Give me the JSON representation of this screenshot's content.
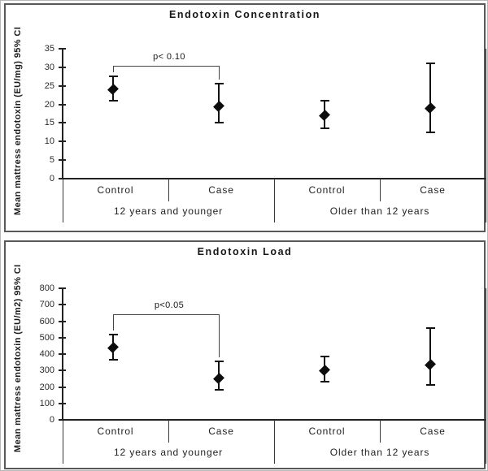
{
  "figure": {
    "description": "Two stacked mean/95% CI charts comparing mattress endotoxin between cases and controls by age group"
  },
  "chart_data": [
    {
      "type": "scatter",
      "subtype": "mean-ci-error-bars",
      "title": "Endotoxin Concentration",
      "ylabel": "Mean mattress endotoxin (EU/mg) 95%  CI",
      "xlabel": "",
      "ylim": [
        0,
        35
      ],
      "yticks": [
        0,
        5,
        10,
        15,
        20,
        25,
        30,
        35
      ],
      "grid": false,
      "legend": "none",
      "groups": [
        "12 years and younger",
        "Older than 12 years"
      ],
      "categories": [
        "Control",
        "Case",
        "Control",
        "Case"
      ],
      "points": [
        {
          "group": "12 years and younger",
          "category": "Control",
          "mean": 24,
          "ci_low": 21,
          "ci_high": 27.5
        },
        {
          "group": "12 years and younger",
          "category": "Case",
          "mean": 19.5,
          "ci_low": 15,
          "ci_high": 25.5
        },
        {
          "group": "Older than 12 years",
          "category": "Control",
          "mean": 17,
          "ci_low": 13.5,
          "ci_high": 21
        },
        {
          "group": "Older than 12 years",
          "category": "Case",
          "mean": 19,
          "ci_low": 12.5,
          "ci_high": 31
        }
      ],
      "annotation": {
        "text": "p< 0.10",
        "from": 0,
        "to": 1,
        "bar_value": 30.5
      }
    },
    {
      "type": "scatter",
      "subtype": "mean-ci-error-bars",
      "title": "Endotoxin Load",
      "ylabel": "Mean mattress endotoxin (EU/m2) 95%  CI",
      "xlabel": "",
      "ylim": [
        0,
        800
      ],
      "yticks": [
        0,
        100,
        200,
        300,
        400,
        500,
        600,
        700,
        800
      ],
      "grid": false,
      "legend": "none",
      "groups": [
        "12 years and younger",
        "Older than 12 years"
      ],
      "categories": [
        "Control",
        "Case",
        "Control",
        "Case"
      ],
      "points": [
        {
          "group": "12 years and younger",
          "category": "Control",
          "mean": 440,
          "ci_low": 365,
          "ci_high": 520
        },
        {
          "group": "12 years and younger",
          "category": "Case",
          "mean": 250,
          "ci_low": 185,
          "ci_high": 355
        },
        {
          "group": "Older than 12 years",
          "category": "Control",
          "mean": 300,
          "ci_low": 230,
          "ci_high": 385
        },
        {
          "group": "Older than 12 years",
          "category": "Case",
          "mean": 335,
          "ci_low": 210,
          "ci_high": 560
        }
      ],
      "annotation": {
        "text": "p<0.05",
        "from": 0,
        "to": 1,
        "bar_value": 640
      }
    }
  ],
  "colors": {
    "marker": "#0d0d0d",
    "axis": "#222222",
    "panel_border": "#595959",
    "text": "#1c1c1c",
    "background": "#ffffff"
  }
}
